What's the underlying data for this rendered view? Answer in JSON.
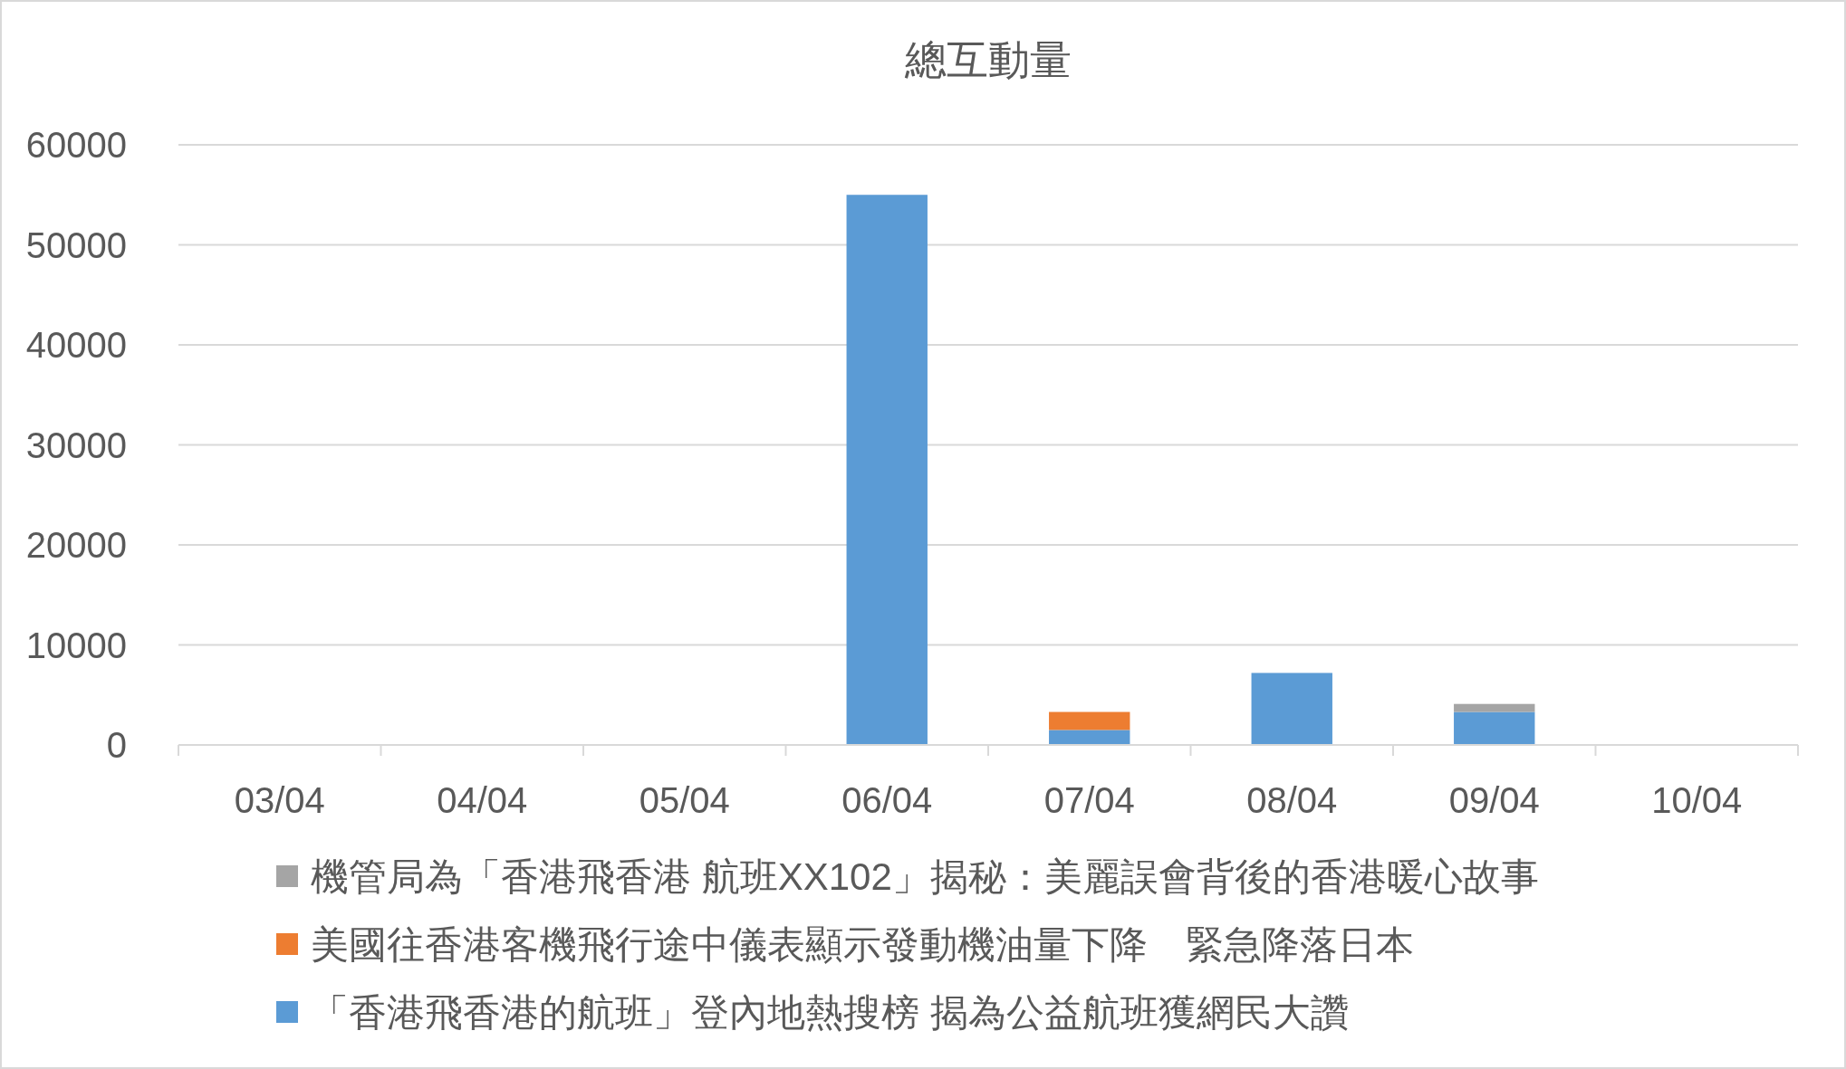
{
  "chart_data": {
    "type": "bar",
    "title": "總互動量",
    "stacked": true,
    "grid": "y",
    "legend": "bottom",
    "categories": [
      "03/04",
      "04/04",
      "05/04",
      "06/04",
      "07/04",
      "08/04",
      "09/04",
      "10/04"
    ],
    "ylim": [
      0,
      60000
    ],
    "yticks": [
      0,
      10000,
      20000,
      30000,
      40000,
      50000,
      60000
    ],
    "series": [
      {
        "name": "「香港飛香港的航班」登內地熱搜榜 揭為公益航班獲網民大讚",
        "color": "#5b9bd5",
        "values": [
          null,
          null,
          null,
          55000,
          1500,
          7200,
          3300,
          null
        ]
      },
      {
        "name": "美國往香港客機飛行途中儀表顯示發動機油量下降　緊急降落日本",
        "color": "#ed7d31",
        "values": [
          null,
          null,
          null,
          null,
          1800,
          null,
          null,
          null
        ]
      },
      {
        "name": "機管局為「香港飛香港 航班XX102」揭秘：美麗誤會背後的香港暖心故事",
        "color": "#a5a5a5",
        "values": [
          null,
          null,
          null,
          null,
          null,
          null,
          800,
          null
        ]
      }
    ]
  }
}
